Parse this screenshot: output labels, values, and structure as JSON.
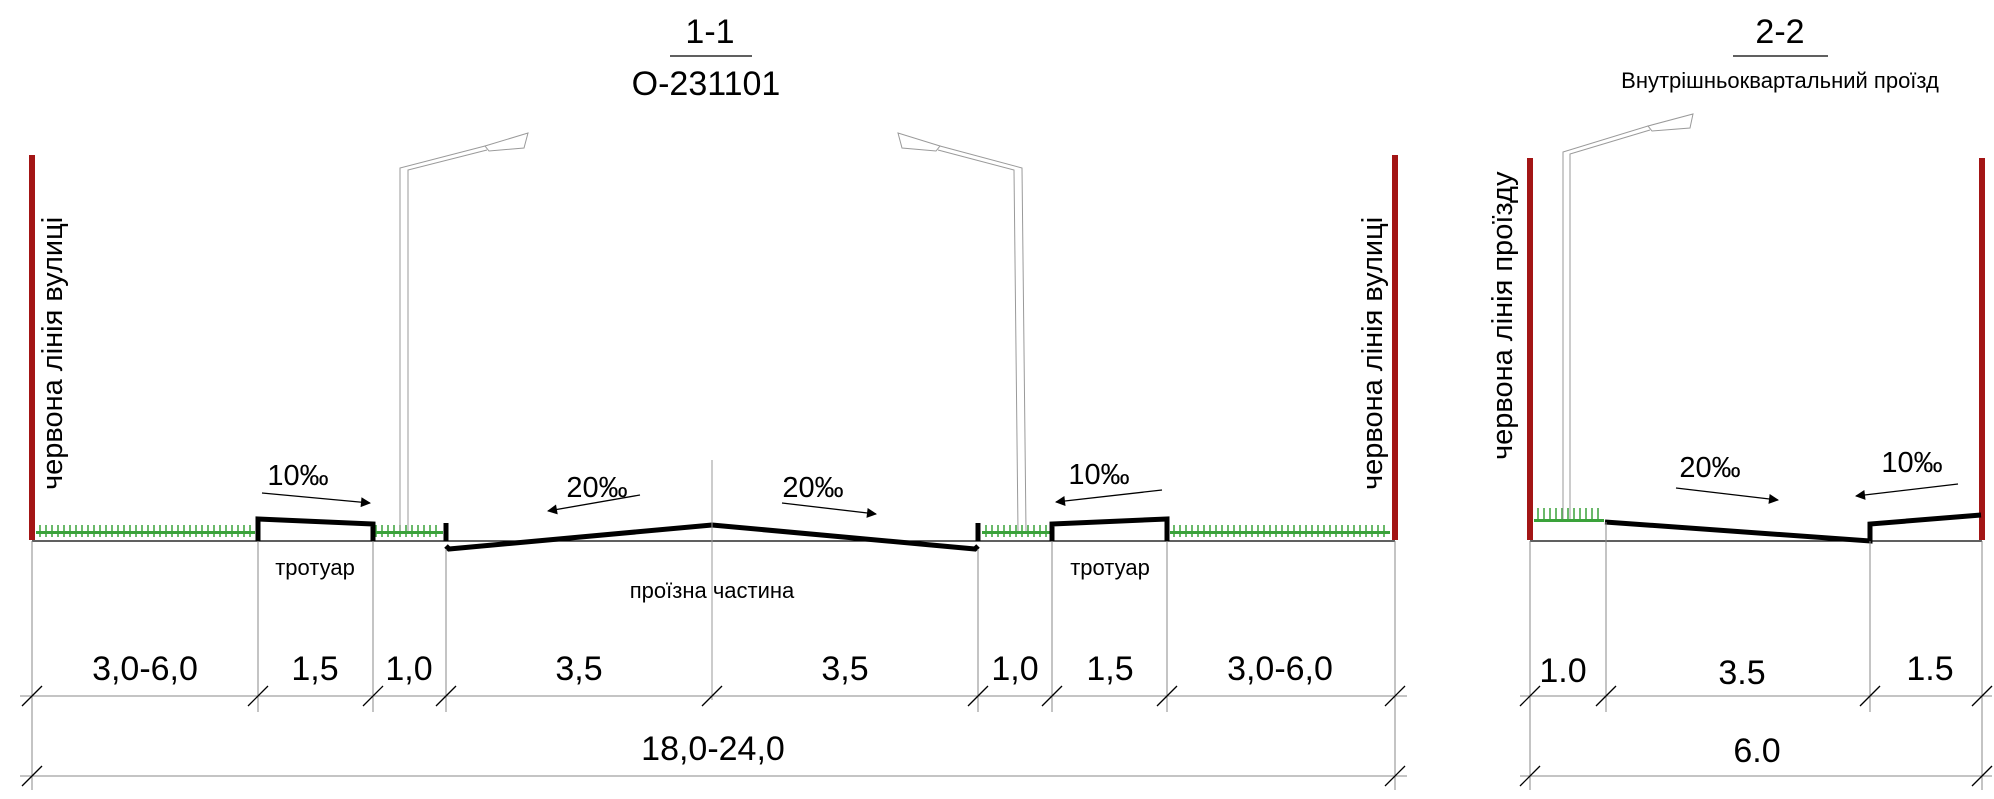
{
  "section_1": {
    "number": "1-1",
    "code": "О-231101",
    "red_line_left": "червона лінія вулиці",
    "red_line_right": "червона лінія вулиці",
    "slopes": [
      "10‰",
      "20‰",
      "20‰",
      "10‰"
    ],
    "labels": {
      "sidewalk_left": "тротуар",
      "sidewalk_right": "тротуар",
      "carriageway": "проїзна частина"
    },
    "dimensions": [
      "3,0-6,0",
      "1,5",
      "1,0",
      "3,5",
      "3,5",
      "1,0",
      "1,5",
      "3,0-6,0"
    ],
    "total": "18,0-24,0"
  },
  "section_2": {
    "number": "2-2",
    "title": "Внутрішньоквартальний проїзд",
    "red_line": "червона лінія проїзду",
    "slopes": [
      "20‰",
      "10‰"
    ],
    "dimensions": [
      "1.0",
      "3.5",
      "1.5"
    ],
    "total": "6.0"
  },
  "colors": {
    "red_line": "#a31515",
    "grass": "#3aa23a",
    "road": "#000000"
  }
}
